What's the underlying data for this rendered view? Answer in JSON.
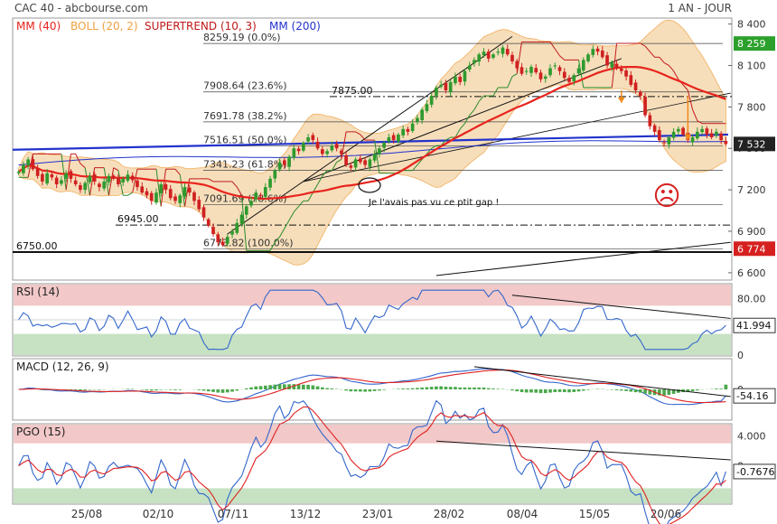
{
  "header": {
    "title": "CAC 40 - abcbourse.com",
    "period": "1 AN - JOUR"
  },
  "colors": {
    "mm40": "#e8231c",
    "boll": "#f0a040",
    "boll_fill": "#f5d9b0",
    "supertrend": "#c01818",
    "supertrend_up": "#2a8a2a",
    "mm200": "#2233cc",
    "candle_up": "#2e9a2e",
    "candle_down": "#d02020",
    "rsi_line": "#3366cc",
    "macd_line": "#3366cc",
    "signal_line": "#e02020",
    "hist": "#4aa84a",
    "zone_top": "#f2c8c8",
    "zone_bottom": "#c6e2c2",
    "label_green": "#2ca02c",
    "label_red": "#d62020",
    "label_dark": "#222222"
  },
  "chart_data": [
    {
      "type": "candlestick",
      "title": "CAC 40 - abcbourse.com",
      "period": "1 AN - JOUR",
      "legend": [
        {
          "label": "MM (40)",
          "color": "#e8231c"
        },
        {
          "label": "BOLL (20, 2)",
          "color": "#f0a040"
        },
        {
          "label": "SUPERTREND (10, 3)",
          "color": "#c01818"
        },
        {
          "label": "MM (200)",
          "color": "#2233cc"
        }
      ],
      "x_ticks": [
        "25/08",
        "02/10",
        "07/11",
        "13/12",
        "23/01",
        "28/02",
        "08/04",
        "15/05",
        "20/06"
      ],
      "y_ticks": [
        "8 400",
        "8 100",
        "7 800",
        "7 500",
        "7 200",
        "6 900",
        "6 600"
      ],
      "ylim": [
        6560,
        8430
      ],
      "price_flags": [
        {
          "label": "8 259",
          "value": 8259,
          "color": "#2ca02c"
        },
        {
          "label": "7 532",
          "value": 7532,
          "color": "#222222"
        },
        {
          "label": "6 774",
          "value": 6774,
          "color": "#d62020"
        }
      ],
      "fibonacci": [
        {
          "label": "8259.19 (0.0%)",
          "value": 8259.19
        },
        {
          "label": "7908.64 (23.6%)",
          "value": 7908.64
        },
        {
          "label": "7691.78 (38.2%)",
          "value": 7691.78
        },
        {
          "label": "7516.51 (50.0%)",
          "value": 7516.51
        },
        {
          "label": "7341.23 (61.8%)",
          "value": 7341.23
        },
        {
          "label": "7091.69 (78.6%)",
          "value": 7091.69
        },
        {
          "label": "6773.82 (100.0%)",
          "value": 6773.82
        }
      ],
      "levels": [
        {
          "label": "7875.00",
          "value": 7875
        },
        {
          "label": "6945.00",
          "value": 6945
        },
        {
          "label": "6750.00",
          "value": 6750
        }
      ],
      "annotation": "Je l'avais pas vu ce ptit gap !",
      "smiley": "☹",
      "closes": [
        7330,
        7380,
        7420,
        7350,
        7300,
        7260,
        7320,
        7290,
        7240,
        7270,
        7320,
        7280,
        7240,
        7200,
        7250,
        7300,
        7260,
        7220,
        7260,
        7300,
        7280,
        7240,
        7280,
        7310,
        7270,
        7220,
        7180,
        7160,
        7120,
        7180,
        7240,
        7200,
        7140,
        7120,
        7160,
        7220,
        7180,
        7120,
        7060,
        7000,
        6940,
        6880,
        6820,
        6800,
        6860,
        6900,
        6960,
        7020,
        7080,
        7120,
        7180,
        7160,
        7220,
        7280,
        7340,
        7400,
        7380,
        7440,
        7500,
        7480,
        7540,
        7580,
        7560,
        7500,
        7460,
        7480,
        7520,
        7500,
        7460,
        7380,
        7360,
        7420,
        7400,
        7380,
        7420,
        7460,
        7500,
        7540,
        7580,
        7560,
        7600,
        7640,
        7620,
        7680,
        7720,
        7780,
        7820,
        7880,
        7940,
        7960,
        7920,
        7980,
        8020,
        7980,
        8060,
        8100,
        8140,
        8180,
        8200,
        8150,
        8180,
        8200,
        8230,
        8180,
        8130,
        8080,
        8040,
        8060,
        8090,
        8050,
        8000,
        8020,
        8080,
        8100,
        8060,
        8010,
        7980,
        8030,
        8080,
        8140,
        8180,
        8220,
        8200,
        8160,
        8100,
        8120,
        8080,
        8060,
        8020,
        7960,
        7920,
        7880,
        7740,
        7660,
        7620,
        7560,
        7540,
        7580,
        7620,
        7640,
        7600,
        7560,
        7580,
        7620,
        7640,
        7600,
        7580,
        7620,
        7560,
        7532
      ],
      "mm200_line": {
        "from": [
          7480,
          "start"
        ],
        "to": [
          7620,
          "end"
        ]
      },
      "oscillators": [
        {
          "name": "RSI (14)",
          "last": "41.994",
          "ticks": [
            "80.00",
            "0"
          ],
          "ylim": [
            0,
            100
          ],
          "zones": [
            70,
            30
          ]
        },
        {
          "name": "MACD (12, 26, 9)",
          "last": "-54.16",
          "ticks": [
            "0"
          ],
          "ylim": [
            -250,
            250
          ]
        },
        {
          "name": "PGO (15)",
          "last": "-0.7676",
          "ticks": [
            "4.000",
            "0"
          ],
          "ylim": [
            -5,
            5.5
          ],
          "zones": [
            3,
            -3
          ]
        }
      ]
    }
  ]
}
